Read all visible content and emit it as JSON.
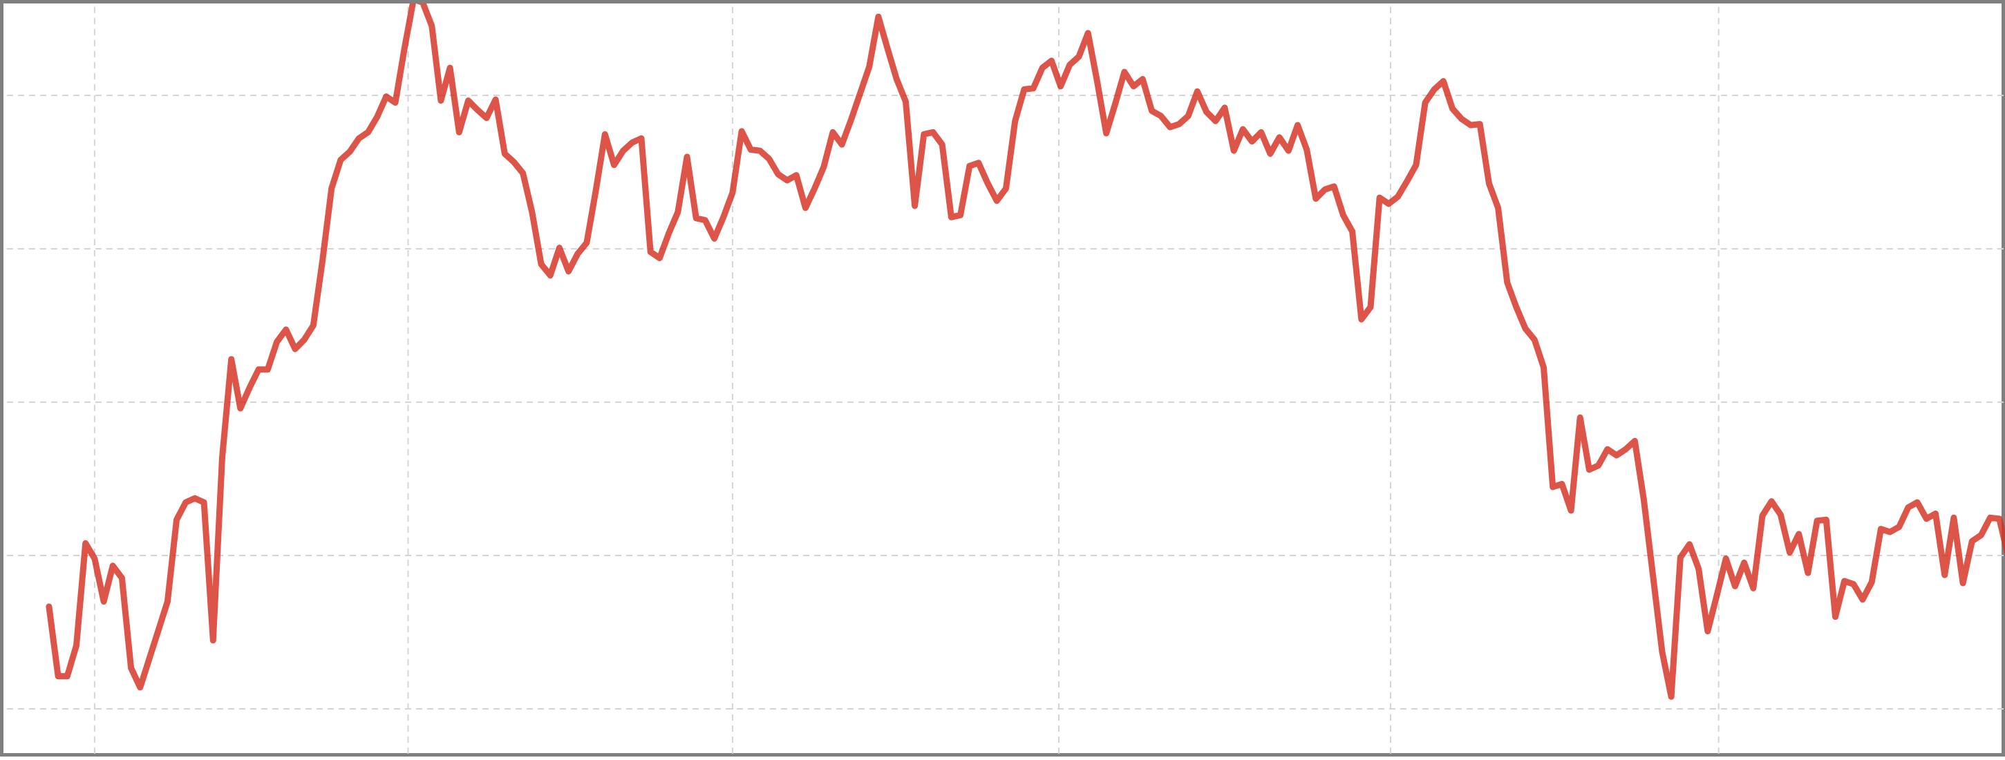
{
  "chart_data": {
    "type": "line",
    "title": "",
    "xlabel": "",
    "ylabel": "",
    "xlim": [
      -5,
      215
    ],
    "ylim": [
      -5,
      69
    ],
    "grid": true,
    "x_grid": [
      5,
      39.4,
      75,
      110.8,
      147.2,
      183.2
    ],
    "y_grid": [
      0,
      15,
      30,
      45,
      60
    ],
    "series": [
      {
        "color": "#d43020",
        "opacity": 0.82,
        "width": 9,
        "values": [
          10.0,
          3.2,
          3.2,
          6.2,
          16.2,
          14.7,
          10.5,
          14.0,
          12.8,
          4.0,
          2.1,
          4.9,
          7.7,
          10.5,
          18.5,
          20.2,
          20.6,
          20.2,
          6.7,
          24.6,
          34.2,
          29.4,
          31.4,
          33.2,
          33.2,
          35.9,
          37.1,
          35.2,
          36.1,
          37.5,
          43.8,
          50.9,
          53.7,
          54.5,
          55.8,
          56.4,
          57.9,
          59.9,
          59.3,
          64.6,
          69.4,
          69.1,
          66.8,
          59.5,
          62.7,
          56.4,
          59.5,
          58.6,
          57.8,
          59.6,
          54.3,
          53.5,
          52.4,
          48.6,
          43.5,
          42.4,
          45.1,
          42.8,
          44.5,
          45.6,
          50.7,
          56.2,
          53.2,
          54.6,
          55.4,
          55.8,
          44.7,
          44.1,
          46.5,
          48.6,
          54.0,
          48.0,
          47.8,
          46.0,
          48.1,
          50.5,
          56.5,
          54.7,
          54.6,
          53.8,
          52.3,
          51.7,
          52.2,
          49.0,
          50.9,
          53.0,
          56.4,
          55.2,
          57.6,
          60.2,
          62.8,
          67.7,
          64.6,
          61.6,
          59.4,
          49.2,
          56.2,
          56.4,
          55.2,
          48.1,
          48.3,
          53.1,
          53.4,
          51.4,
          49.7,
          50.9,
          57.5,
          60.6,
          60.7,
          62.7,
          63.4,
          60.9,
          63.0,
          63.8,
          66.1,
          61.4,
          56.3,
          59.2,
          62.3,
          60.9,
          61.6,
          58.5,
          58.0,
          56.9,
          57.2,
          58.0,
          60.4,
          58.4,
          57.5,
          58.8,
          54.6,
          56.7,
          55.5,
          56.4,
          54.3,
          55.9,
          54.6,
          57.1,
          54.7,
          49.9,
          50.8,
          51.1,
          48.3,
          46.7,
          38.1,
          39.3,
          50.0,
          49.4,
          50.1,
          51.6,
          53.2,
          59.3,
          60.6,
          61.4,
          58.7,
          57.7,
          57.1,
          57.2,
          51.4,
          49.0,
          41.7,
          39.3,
          37.2,
          36.1,
          33.4,
          21.7,
          22.0,
          19.4,
          28.5,
          23.4,
          23.8,
          25.4,
          24.8,
          25.4,
          26.2,
          20.4,
          13.0,
          5.6,
          1.2,
          14.8,
          16.1,
          13.7,
          7.6,
          11.1,
          14.7,
          12.0,
          14.3,
          11.8,
          18.9,
          20.3,
          19.0,
          15.3,
          17.1,
          13.3,
          18.4,
          18.5,
          9.0,
          12.5,
          12.2,
          10.7,
          12.4,
          17.6,
          17.3,
          17.8,
          19.7,
          20.2,
          18.6,
          19.1,
          13.1,
          18.7,
          12.3,
          16.4,
          17.0,
          18.7,
          18.6,
          14.8,
          18.9,
          23.3,
          26.3,
          23.9,
          23.1,
          17.7,
          16.9,
          24.9,
          30.8,
          33.1,
          32.5,
          30.0,
          29.5,
          27.3,
          25.8,
          21.7,
          18.4,
          19.8,
          22.5,
          17.2,
          22.9,
          27.3,
          26.0,
          27.9,
          29.1,
          32.6,
          34.5,
          34.5,
          38.6,
          34.8,
          34.7,
          35.6,
          35.4,
          33.6,
          28.8,
          26.7,
          27.2,
          29.1,
          30.3,
          25.8,
          24.0,
          23.0,
          22.9,
          23.9,
          26.8,
          27.8,
          25.1,
          28.0,
          28.5,
          27.0,
          29.9,
          24.9,
          23.4,
          21.8,
          20.6,
          16.8,
          18.0,
          16.7,
          20.9,
          22.1,
          22.6,
          22.3,
          23.6,
          25.1,
          27.0,
          27.3,
          28.2,
          29.3,
          30.1,
          30.2,
          29.0,
          30.9,
          28.6,
          27.0,
          27.9,
          29.8,
          29.5,
          28.9,
          28.1,
          26.0,
          26.8,
          28.5,
          30.5,
          30.1,
          29.7,
          31.7,
          29.2,
          26.7,
          23.9,
          23.3,
          27.9,
          29.3,
          29.6,
          29.8,
          28.4,
          29.2,
          29.1,
          26.7,
          29.5,
          29.6,
          30.3,
          30.6,
          29.8,
          26.2,
          30.0,
          26.7,
          26.3,
          29.2,
          28.6,
          27.9,
          28.7,
          24.0,
          23.3,
          24.3,
          23.6,
          23.9,
          25.8,
          26.4,
          26.9,
          28.3,
          28.7,
          29.8,
          26.5,
          27.6,
          26.0,
          27.8,
          26.2,
          27.0,
          24.9,
          25.5,
          23.0,
          23.8,
          24.7
        ]
      }
    ]
  }
}
